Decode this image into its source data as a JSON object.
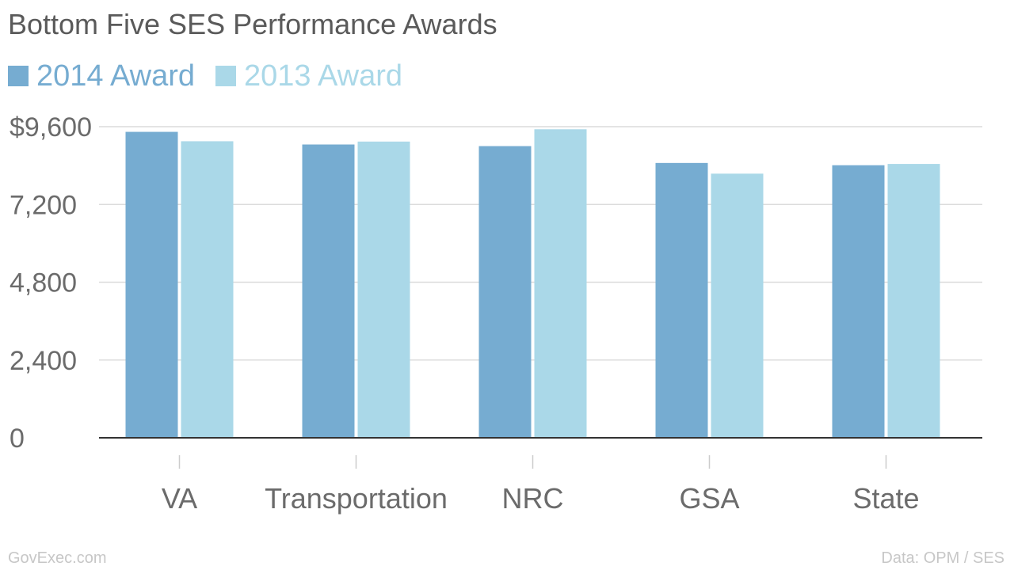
{
  "chart_data": {
    "type": "bar",
    "title": "Bottom Five SES Performance Awards",
    "xlabel": "",
    "ylabel": "",
    "ylim": [
      0,
      9600
    ],
    "yticks": [
      0,
      2400,
      4800,
      7200,
      9600
    ],
    "ytick_labels": [
      "0",
      "2,400",
      "4,800",
      "7,200",
      "$9,600"
    ],
    "grid": true,
    "legend_position": "top-left",
    "categories": [
      "VA",
      "Transportation",
      "NRC",
      "GSA",
      "State"
    ],
    "series": [
      {
        "name": "2014 Award",
        "color": "#76acd1",
        "values": [
          9440,
          9050,
          9000,
          8480,
          8410
        ]
      },
      {
        "name": "2013 Award",
        "color": "#aad8e8",
        "values": [
          9150,
          9140,
          9520,
          8150,
          8450
        ]
      }
    ]
  },
  "footer": {
    "source_left": "GovExec.com",
    "source_right": "Data: OPM / SES"
  },
  "colors": {
    "title": "#5a5a5a",
    "axis_text": "#6b6b6b",
    "gridline": "#dcdcdc",
    "baseline": "#333333",
    "footer": "#c7c7c7"
  }
}
